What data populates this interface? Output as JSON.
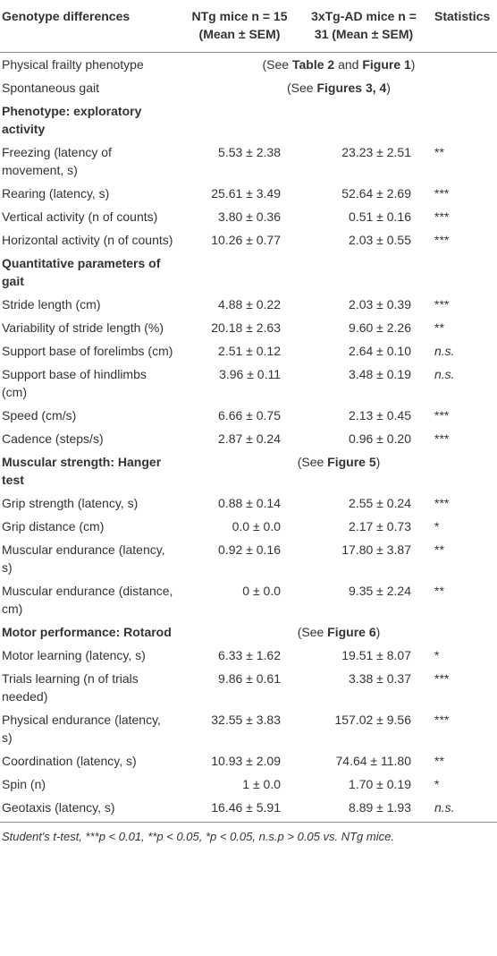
{
  "table": {
    "header": [
      "Genotype differences",
      "NTg mice n = 15 (Mean ± SEM)",
      "3xTg-AD mice n = 31 (Mean ± SEM)",
      "Statistics"
    ],
    "rows": [
      {
        "label": "Physical frailty phenotype",
        "note": [
          "(See ",
          "Table 2",
          " and ",
          "Figure 1",
          ")"
        ]
      },
      {
        "label": "Spontaneous gait",
        "note": [
          "(See ",
          "Figures 3, 4",
          ")"
        ]
      },
      {
        "label": "Phenotype: exploratory activity",
        "heading": true
      },
      {
        "label": "Freezing (latency of movement, s)",
        "cells": [
          "5.53 ± 2.38",
          "23.23 ± 2.51",
          "**"
        ]
      },
      {
        "label": "Rearing (latency, s)",
        "cells": [
          "25.61 ± 3.49",
          "52.64 ± 2.69",
          "***"
        ]
      },
      {
        "label": "Vertical activity (n of counts)",
        "cells": [
          "3.80 ± 0.36",
          "0.51 ± 0.16",
          "***"
        ]
      },
      {
        "label": "Horizontal activity (n of counts)",
        "cells": [
          "10.26 ± 0.77",
          "2.03 ± 0.55",
          "***"
        ]
      },
      {
        "label": "Quantitative parameters of gait",
        "heading": true
      },
      {
        "label": "Stride length (cm)",
        "cells": [
          "4.88 ± 0.22",
          "2.03 ± 0.39",
          "***"
        ]
      },
      {
        "label": "Variability of stride length (%)",
        "cells": [
          "20.18 ± 2.63",
          "9.60 ± 2.26",
          "**"
        ]
      },
      {
        "label": "Support base of forelimbs (cm)",
        "cells": [
          "2.51 ± 0.12",
          "2.64 ± 0.10",
          "n.s."
        ]
      },
      {
        "label": "Support base of hindlimbs (cm)",
        "cells": [
          "3.96 ± 0.11",
          "3.48 ± 0.19",
          "n.s."
        ]
      },
      {
        "label": "Speed (cm/s)",
        "cells": [
          "6.66 ± 0.75",
          "2.13 ± 0.45",
          "***"
        ]
      },
      {
        "label": "Cadence (steps/s)",
        "cells": [
          "2.87 ± 0.24",
          "0.96 ± 0.20",
          "***"
        ]
      },
      {
        "label": "Muscular strength: Hanger test",
        "heading": true,
        "note": [
          "(See ",
          "Figure 5",
          ")"
        ]
      },
      {
        "label": "Grip strength (latency, s)",
        "cells": [
          "0.88 ± 0.14",
          "2.55 ± 0.24",
          "***"
        ]
      },
      {
        "label": "Grip distance (cm)",
        "cells": [
          "0.0 ± 0.0",
          "2.17 ± 0.73",
          "*"
        ]
      },
      {
        "label": "Muscular endurance (latency, s)",
        "cells": [
          "0.92 ± 0.16",
          "17.80 ± 3.87",
          "**"
        ]
      },
      {
        "label": "Muscular endurance (distance, cm)",
        "cells": [
          "0 ± 0.0",
          "9.35 ± 2.24",
          "**"
        ]
      },
      {
        "label": "Motor performance: Rotarod",
        "heading": true,
        "note": [
          "(See ",
          "Figure 6",
          ")"
        ]
      },
      {
        "label": "Motor learning (latency, s)",
        "cells": [
          "6.33 ± 1.62",
          "19.51 ± 8.07",
          "*"
        ]
      },
      {
        "label": "Trials learning (n of trials needed)",
        "cells": [
          "9.86 ± 0.61",
          "3.38 ± 0.37",
          "***"
        ]
      },
      {
        "label": "Physical endurance (latency, s)",
        "cells": [
          "32.55 ± 3.83",
          "157.02 ± 9.56",
          "***"
        ]
      },
      {
        "label": "Coordination (latency, s)",
        "cells": [
          "10.93 ± 2.09",
          "74.64 ± 11.80",
          "**"
        ]
      },
      {
        "label": "Spin (n)",
        "cells": [
          "1 ± 0.0",
          "1.70 ± 0.19",
          "*"
        ]
      },
      {
        "label": "Geotaxis (latency, s)",
        "cells": [
          "16.46 ± 5.91",
          "8.89 ± 1.93",
          "n.s."
        ]
      }
    ],
    "footnote": "Student's t-test, ***p < 0.01, **p < 0.05, *p < 0.05, n.s.p > 0.05 vs. NTg mice."
  }
}
